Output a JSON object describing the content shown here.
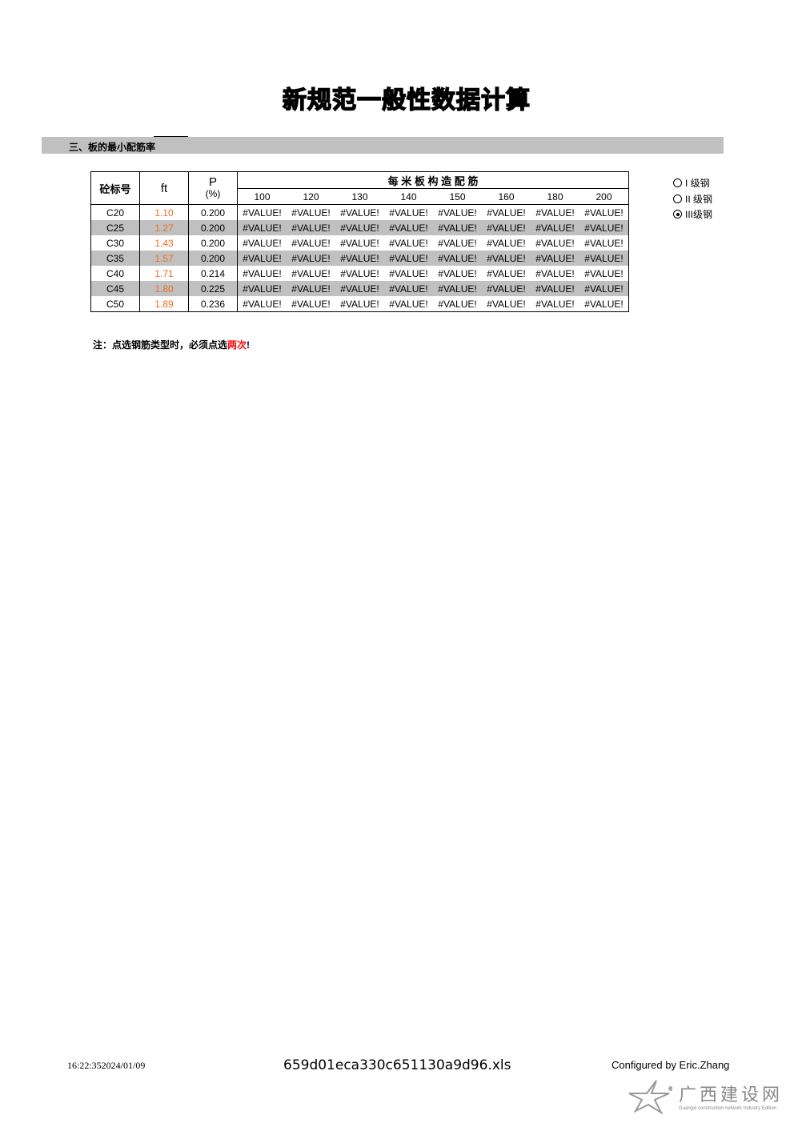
{
  "title": "新规范一般性数据计算",
  "section": "三、板的最小配筋率",
  "table": {
    "headers": {
      "grade": "砼标号",
      "ft": "ft",
      "p": "P",
      "p_unit": "(%)",
      "group": "每 米 板 构 造 配 筋",
      "spacings": [
        "100",
        "120",
        "130",
        "140",
        "150",
        "160",
        "180",
        "200"
      ]
    },
    "rows": [
      {
        "grade": "C20",
        "ft": "1.10",
        "p": "0.200"
      },
      {
        "grade": "C25",
        "ft": "1.27",
        "p": "0.200"
      },
      {
        "grade": "C30",
        "ft": "1.43",
        "p": "0.200"
      },
      {
        "grade": "C35",
        "ft": "1.57",
        "p": "0.200"
      },
      {
        "grade": "C40",
        "ft": "1.71",
        "p": "0.214"
      },
      {
        "grade": "C45",
        "ft": "1.80",
        "p": "0.225"
      },
      {
        "grade": "C50",
        "ft": "1.89",
        "p": "0.236"
      }
    ],
    "cell_value": "#VALUE!"
  },
  "steel_options": [
    {
      "label": "I 级钢",
      "selected": false
    },
    {
      "label": "II 级钢",
      "selected": false
    },
    {
      "label": "III级钢",
      "selected": true
    }
  ],
  "note": {
    "prefix": "注：点选钢筋类型时，必须点选",
    "highlight": "两次",
    "suffix": "!"
  },
  "footer": {
    "timestamp": "16:22:352024/01/09",
    "filename": "659d01eca330c651130a9d96.xls",
    "credit": "Configured by Eric.Zhang"
  },
  "logo": {
    "name": "广西建设网",
    "subtitle": "Guangxi construction network Industry Edition"
  },
  "colors": {
    "ft": "#f26b1d",
    "highlight": "#ff0000",
    "band": "#c0c0c0"
  }
}
